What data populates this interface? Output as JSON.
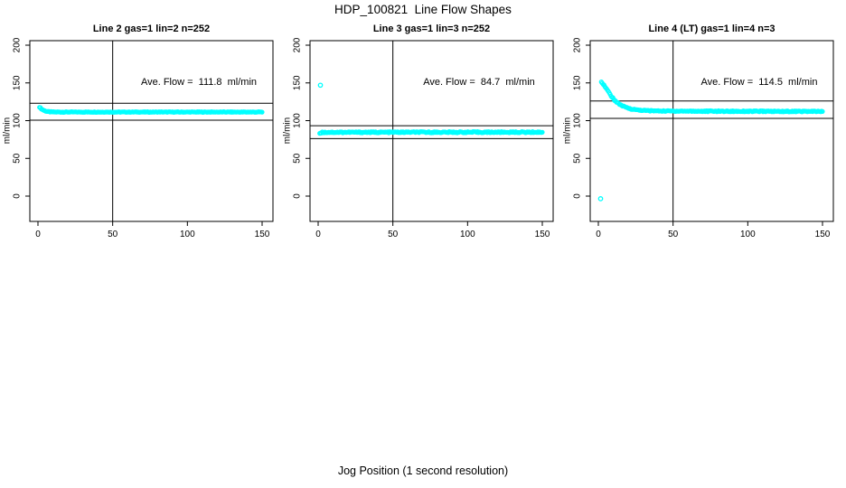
{
  "title": "HDP_100821  Line Flow Shapes",
  "outer_xlabel": "Jog Position (1 second resolution)",
  "palette": {
    "points": "#00ffff",
    "axis": "#000000",
    "text": "#000000",
    "background": "#ffffff"
  },
  "chart_data": [
    {
      "type": "scatter",
      "title": "Line 2 gas=1 lin=2 n=252",
      "ylabel": "ml/min",
      "annotation": "Ave. Flow =  111.8  ml/min",
      "ave_flow_ml_min": 111.8,
      "n": 252,
      "xlim": [
        0,
        150
      ],
      "ylim": [
        0,
        200
      ],
      "xticks": [
        0,
        50,
        100,
        150
      ],
      "yticks": [
        0,
        50,
        100,
        150,
        200
      ],
      "vline": 50,
      "hlines": [
        123.0,
        100.6
      ],
      "marker": "open-circle",
      "series_anchors": [
        [
          1,
          118
        ],
        [
          1.5,
          117.2
        ],
        [
          2,
          116.2
        ],
        [
          3,
          114.6
        ],
        [
          4,
          113.5
        ],
        [
          5,
          112.7
        ],
        [
          6,
          112.2
        ],
        [
          7,
          111.9
        ],
        [
          8,
          111.7
        ],
        [
          10,
          111.5
        ],
        [
          15,
          111.4
        ],
        [
          150,
          111.4
        ]
      ],
      "noise": 0.45,
      "render_points": 252,
      "outliers": []
    },
    {
      "type": "scatter",
      "title": "Line 3 gas=1 lin=3 n=252",
      "ylabel": "ml/min",
      "annotation": "Ave. Flow =  84.7  ml/min",
      "ave_flow_ml_min": 84.7,
      "n": 252,
      "xlim": [
        0,
        150
      ],
      "ylim": [
        0,
        200
      ],
      "xticks": [
        0,
        50,
        100,
        150
      ],
      "yticks": [
        0,
        50,
        100,
        150,
        200
      ],
      "vline": 50,
      "hlines": [
        93.2,
        76.2
      ],
      "marker": "open-circle",
      "series_anchors": [
        [
          1,
          83.2
        ],
        [
          2,
          84.2
        ],
        [
          4,
          84.5
        ],
        [
          8,
          84.6
        ],
        [
          150,
          84.7
        ]
      ],
      "noise": 0.8,
      "render_points": 252,
      "outliers": [
        [
          1.5,
          147
        ]
      ]
    },
    {
      "type": "scatter",
      "title": "Line 4 (LT) gas=1 lin=4 n=3",
      "ylabel": "ml/min",
      "annotation": "Ave. Flow =  114.5  ml/min",
      "ave_flow_ml_min": 114.5,
      "n": 3,
      "xlim": [
        0,
        150
      ],
      "ylim": [
        0,
        200
      ],
      "xticks": [
        0,
        50,
        100,
        150
      ],
      "yticks": [
        0,
        50,
        100,
        150,
        200
      ],
      "vline": 50,
      "hlines": [
        126.0,
        103.0
      ],
      "marker": "open-circle",
      "series_anchors": [
        [
          2,
          152
        ],
        [
          3,
          149.2
        ],
        [
          4,
          146.3
        ],
        [
          5,
          143.4
        ],
        [
          6,
          140.4
        ],
        [
          7,
          137.4
        ],
        [
          8,
          134.5
        ],
        [
          9,
          131.7
        ],
        [
          10,
          129.1
        ],
        [
          11,
          126.9
        ],
        [
          12,
          125.0
        ],
        [
          13,
          123.4
        ],
        [
          14,
          122.0
        ],
        [
          15,
          120.8
        ],
        [
          16,
          119.7
        ],
        [
          17,
          118.7
        ],
        [
          18,
          117.9
        ],
        [
          19,
          117.2
        ],
        [
          20,
          116.5
        ],
        [
          22,
          115.5
        ],
        [
          24,
          114.8
        ],
        [
          26,
          114.3
        ],
        [
          28,
          113.9
        ],
        [
          30,
          113.6
        ],
        [
          35,
          113.1
        ],
        [
          40,
          112.9
        ],
        [
          50,
          112.7
        ],
        [
          70,
          112.5
        ],
        [
          100,
          112.4
        ],
        [
          150,
          112.2
        ]
      ],
      "noise": 0.7,
      "render_points": 250,
      "outliers": [
        [
          1.5,
          -3.5
        ]
      ]
    }
  ]
}
